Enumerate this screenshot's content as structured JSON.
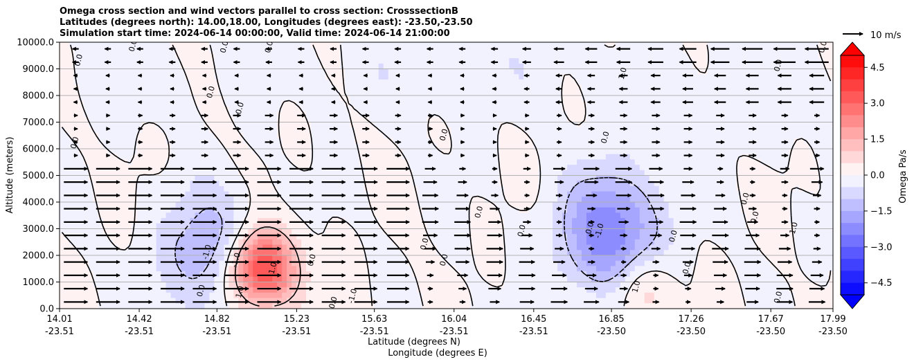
{
  "chart_data": {
    "type": "heatmap",
    "title_lines": [
      "Omega cross section and wind vectors parallel to cross section: CrosssectionB",
      "Latitudes (degrees north): 14.00,18.00, Longitudes (degrees east): -23.50,-23.50",
      "Simulation start time: 2024-06-14 00:00:00, Valid time: 2024-06-14 21:00:00"
    ],
    "ylabel": "Altitude (meters)",
    "xlabel_lat": "Latitude (degrees N)",
    "xlabel_lon": "Longitude (degrees E)",
    "ylim": [
      0,
      10000
    ],
    "yticks": [
      "0.0",
      "1000.0",
      "2000.0",
      "3000.0",
      "4000.0",
      "5000.0",
      "6000.0",
      "7000.0",
      "8000.0",
      "9000.0",
      "10000.0"
    ],
    "xticks_lat": [
      "14.01",
      "14.42",
      "14.82",
      "15.23",
      "15.63",
      "16.04",
      "16.45",
      "16.85",
      "17.26",
      "17.67",
      "17.99"
    ],
    "xticks_lon": [
      "-23.51",
      "-23.51",
      "-23.51",
      "-23.51",
      "-23.51",
      "-23.51",
      "-23.51",
      "-23.50",
      "-23.50",
      "-23.50",
      "-23.50"
    ],
    "grid": "horizontal",
    "colorbar": {
      "label": "Omega Pa/s",
      "range": [
        -5,
        5
      ],
      "ticks": [
        "4.5",
        "3.0",
        "1.5",
        "0.0",
        "−1.5",
        "−3.0",
        "−4.5"
      ],
      "colormap": "bwr",
      "extend": "both"
    },
    "vector_key": {
      "label": "10 m/s"
    },
    "contour_labels": [
      "0.0",
      "-1.0",
      "1.0"
    ],
    "features": [
      {
        "type": "max",
        "lat": 15.05,
        "altitude_m": 1500,
        "omega": 4.0
      },
      {
        "type": "min",
        "lat": 14.78,
        "altitude_m": 2100,
        "omega": -1.5
      },
      {
        "type": "min",
        "lat": 16.85,
        "altitude_m": 2800,
        "omega": -2.5
      },
      {
        "type": "max",
        "lat": 17.0,
        "altitude_m": 800,
        "omega": 1.2
      }
    ]
  },
  "colors": {
    "positive": "#ff0000",
    "negative": "#0000ff",
    "contour": "#000000",
    "grid": "#b0b0b0"
  }
}
